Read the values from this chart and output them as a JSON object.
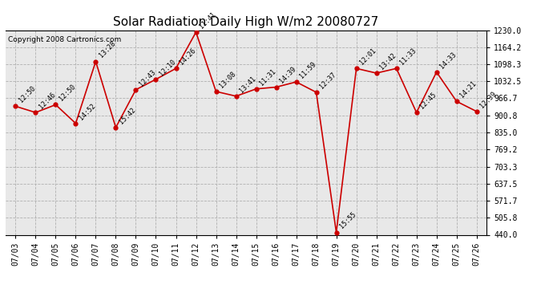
{
  "title": "Solar Radiation Daily High W/m2 20080727",
  "copyright": "Copyright 2008 Cartronics.com",
  "dates": [
    "07/03",
    "07/04",
    "07/05",
    "07/06",
    "07/07",
    "07/08",
    "07/09",
    "07/10",
    "07/11",
    "07/12",
    "07/13",
    "07/14",
    "07/15",
    "07/16",
    "07/17",
    "07/18",
    "07/19",
    "07/20",
    "07/21",
    "07/22",
    "07/23",
    "07/24",
    "07/25",
    "07/26"
  ],
  "values": [
    936,
    912,
    942,
    870,
    1109,
    854,
    1000,
    1040,
    1082,
    1222,
    993,
    975,
    1003,
    1010,
    1030,
    990,
    449,
    1082,
    1064,
    1082,
    912,
    1068,
    955,
    916
  ],
  "times": [
    "12:50",
    "12:46",
    "12:50",
    "14:52",
    "13:28",
    "15:42",
    "12:43",
    "12:10",
    "14:26",
    "11:41",
    "13:08",
    "13:41",
    "11:31",
    "14:39",
    "11:59",
    "12:37",
    "15:55",
    "12:01",
    "13:42",
    "11:33",
    "12:45",
    "14:33",
    "14:21",
    "12:39"
  ],
  "ylim": [
    440.0,
    1230.0
  ],
  "yticks": [
    440.0,
    505.8,
    571.7,
    637.5,
    703.3,
    769.2,
    835.0,
    900.8,
    966.7,
    1032.5,
    1098.3,
    1164.2,
    1230.0
  ],
  "line_color": "#cc0000",
  "marker_color": "#cc0000",
  "bg_color": "#e8e8e8",
  "grid_color": "#b0b0b0",
  "title_fontsize": 11,
  "tick_fontsize": 7,
  "annot_fontsize": 6,
  "copyright_fontsize": 6.5
}
